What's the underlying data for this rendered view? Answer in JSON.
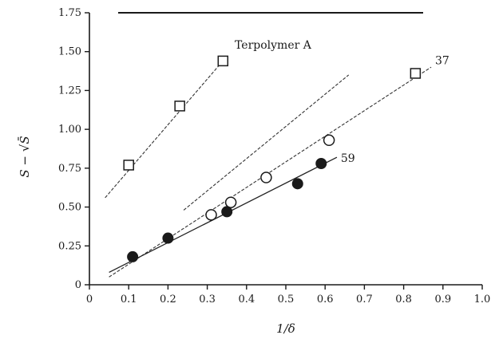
{
  "chart_data": {
    "type": "scatter",
    "title": "",
    "xlabel": "1/δ",
    "ylabel": "S − √S̄",
    "xlim": [
      0,
      1.0
    ],
    "ylim": [
      0,
      1.75
    ],
    "x_ticks": [
      "0",
      "0.1",
      "0.2",
      "0.3",
      "0.4",
      "0.5",
      "0.6",
      "0.7",
      "0.8",
      "0.9",
      "1.0"
    ],
    "y_ticks": [
      "0",
      "0.25",
      "0.50",
      "0.75",
      "1.00",
      "1.25",
      "1.50",
      "1.75"
    ],
    "grid": false,
    "series": [
      {
        "name": "Terpolymer A",
        "marker": "open-square",
        "points": [
          [
            0.1,
            0.77
          ],
          [
            0.23,
            1.15
          ],
          [
            0.34,
            1.44
          ]
        ],
        "fit": [
          [
            0.04,
            0.56
          ],
          [
            0.35,
            1.47
          ]
        ]
      },
      {
        "name": "37",
        "marker": "open-square",
        "points": [
          [
            0.83,
            1.36
          ]
        ],
        "fit": [
          [
            0.05,
            0.05
          ],
          [
            0.87,
            1.4
          ]
        ]
      },
      {
        "name": "",
        "marker": "open-circle",
        "points": [
          [
            0.31,
            0.45
          ],
          [
            0.36,
            0.53
          ],
          [
            0.45,
            0.69
          ],
          [
            0.61,
            0.93
          ]
        ],
        "fit": [
          [
            0.24,
            0.48
          ],
          [
            0.66,
            1.35
          ]
        ]
      },
      {
        "name": "59",
        "marker": "filled-circle",
        "points": [
          [
            0.11,
            0.18
          ],
          [
            0.2,
            0.3
          ],
          [
            0.35,
            0.47
          ],
          [
            0.53,
            0.65
          ],
          [
            0.59,
            0.78
          ]
        ],
        "fit": [
          [
            0.05,
            0.08
          ],
          [
            0.63,
            0.82
          ]
        ]
      }
    ],
    "annotations": [
      {
        "text": "Terpolymer A",
        "x": 0.37,
        "y": 1.52
      },
      {
        "text": "37",
        "x": 0.88,
        "y": 1.42
      },
      {
        "text": "59",
        "x": 0.64,
        "y": 0.79
      }
    ],
    "colors": {
      "ink": "#1a1a1a",
      "background": "#ffffff"
    }
  }
}
